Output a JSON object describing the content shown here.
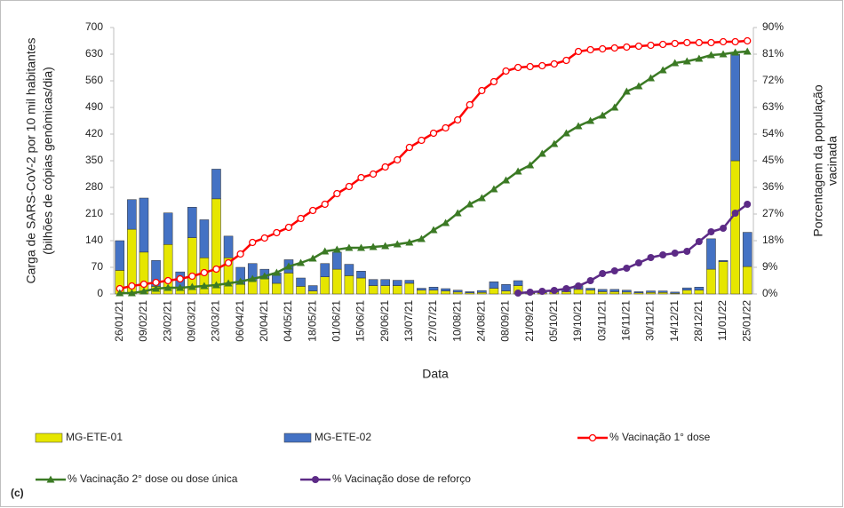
{
  "chart_data": {
    "type": "combo",
    "panel_label": "(c)",
    "x_label": "Data",
    "y_label": [
      "Carga de SARS-CoV-2 por 10 mil habitantes",
      "(bilhões de cópias genômicas/dia)"
    ],
    "y2_label": [
      "Porcentagem da população",
      "vacinada"
    ],
    "categories": [
      "26/01/21",
      null,
      "09/02/21",
      null,
      "23/02/21",
      null,
      "09/03/21",
      null,
      "23/03/21",
      null,
      "06/04/21",
      null,
      "20/04/21",
      null,
      "04/05/21",
      null,
      "18/05/21",
      null,
      "01/06/21",
      null,
      "15/06/21",
      null,
      "29/06/21",
      null,
      "13/07/21",
      null,
      "27/07/21",
      null,
      "10/08/21",
      null,
      "24/08/21",
      null,
      "08/09/21",
      null,
      "21/09/21",
      null,
      "05/10/21",
      null,
      "19/10/21",
      null,
      "03/11/21",
      null,
      "16/11/21",
      null,
      "30/11/21",
      null,
      "14/12/21",
      null,
      "28/12/21",
      null,
      "11/01/22",
      null,
      "25/01/22"
    ],
    "ylim": [
      0,
      700
    ],
    "yticks": [
      0,
      70,
      140,
      210,
      280,
      350,
      420,
      490,
      560,
      630,
      700
    ],
    "y2lim": [
      0,
      90
    ],
    "y2ticks": [
      {
        "value": 0,
        "label": "0%"
      },
      {
        "value": 9,
        "label": "9%"
      },
      {
        "value": 18,
        "label": "18%"
      },
      {
        "value": 27,
        "label": "27%"
      },
      {
        "value": 36,
        "label": "36%"
      },
      {
        "value": 45,
        "label": "45%"
      },
      {
        "value": 54,
        "label": "54%"
      },
      {
        "value": 63,
        "label": "63%"
      },
      {
        "value": 72,
        "label": "72%"
      },
      {
        "value": 81,
        "label": "81%"
      },
      {
        "value": 90,
        "label": "90%"
      }
    ],
    "stacked": true,
    "grid": false,
    "legend": "bottom",
    "series": [
      {
        "name": "MG-ETE-01",
        "type": "bar",
        "color": "#e6e600",
        "values": [
          62,
          170,
          110,
          20,
          130,
          15,
          148,
          95,
          250,
          95,
          25,
          35,
          40,
          28,
          55,
          20,
          8,
          45,
          65,
          48,
          42,
          22,
          22,
          22,
          28,
          10,
          10,
          8,
          5,
          3,
          4,
          15,
          8,
          22,
          2,
          3,
          5,
          6,
          12,
          10,
          6,
          6,
          5,
          3,
          4,
          4,
          2,
          10,
          10,
          65,
          85,
          350,
          72
        ]
      },
      {
        "name": "MG-ETE-02",
        "type": "bar",
        "color": "#4472c4",
        "values": [
          78,
          78,
          142,
          68,
          83,
          43,
          80,
          100,
          78,
          57,
          45,
          45,
          25,
          27,
          35,
          22,
          14,
          35,
          45,
          30,
          18,
          16,
          16,
          14,
          8,
          5,
          8,
          6,
          5,
          3,
          5,
          17,
          17,
          13,
          4,
          5,
          5,
          6,
          10,
          5,
          6,
          6,
          5,
          3,
          4,
          4,
          3,
          6,
          8,
          80,
          3,
          280,
          90
        ]
      },
      {
        "name": "% Vacinação 1° dose",
        "type": "line",
        "axis": "y2",
        "color": "#ff0000",
        "marker": "hollow-circle",
        "values": [
          1.8,
          2.7,
          3.3,
          3.9,
          4.5,
          5.1,
          6,
          7.2,
          8.4,
          10.5,
          13.5,
          17.4,
          18.9,
          20.7,
          22.5,
          25.5,
          28.2,
          30.3,
          33.9,
          36.3,
          39.3,
          40.5,
          42.9,
          45.3,
          49.5,
          51.9,
          54.3,
          56.1,
          58.8,
          63.9,
          68.7,
          71.7,
          75.3,
          76.5,
          76.8,
          77.1,
          77.7,
          78.9,
          81.9,
          82.5,
          82.8,
          83.1,
          83.4,
          83.7,
          84,
          84.3,
          84.6,
          84.9,
          84.9,
          84.9,
          85.2,
          85.2,
          85.5
        ]
      },
      {
        "name": "% Vacinação 2° dose ou dose única",
        "type": "line",
        "axis": "y2",
        "color": "#3b7a24",
        "marker": "triangle",
        "values": [
          0.3,
          0.3,
          0.9,
          1.8,
          2.1,
          2.1,
          2.4,
          2.7,
          3,
          3.6,
          4.2,
          5.1,
          6,
          7.2,
          9.3,
          10.5,
          12,
          14.4,
          15,
          15.6,
          15.6,
          15.9,
          16.2,
          16.8,
          17.4,
          18.6,
          21.6,
          24,
          27.3,
          30.3,
          32.4,
          35.4,
          38.4,
          41.4,
          43.5,
          47.4,
          50.7,
          54.3,
          56.7,
          58.5,
          60.3,
          63,
          68.4,
          70.2,
          72.9,
          75.6,
          78,
          78.6,
          79.5,
          80.7,
          81,
          81.6,
          81.9
        ]
      },
      {
        "name": "% Vacinação dose de reforço",
        "type": "line",
        "axis": "y2",
        "color": "#5c2a86",
        "marker": "circle",
        "values": [
          null,
          null,
          null,
          null,
          null,
          null,
          null,
          null,
          null,
          null,
          null,
          null,
          null,
          null,
          null,
          null,
          null,
          null,
          null,
          null,
          null,
          null,
          null,
          null,
          null,
          null,
          null,
          null,
          null,
          null,
          null,
          null,
          null,
          0.3,
          0.6,
          0.9,
          1.2,
          1.8,
          2.7,
          4.5,
          6.9,
          7.8,
          8.7,
          10.5,
          12.3,
          13.2,
          13.8,
          14.4,
          17.7,
          21,
          22.2,
          27.3,
          30.3
        ]
      }
    ]
  }
}
